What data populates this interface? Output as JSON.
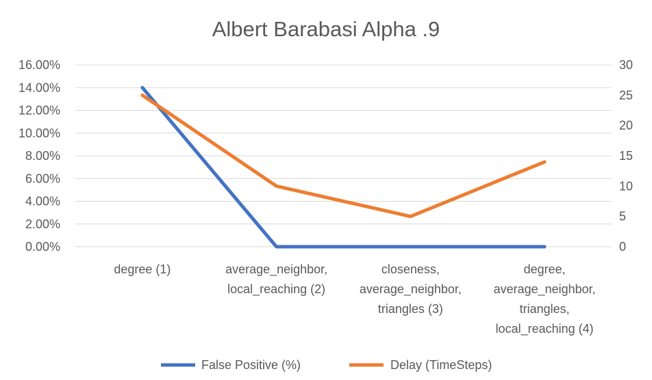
{
  "chart_data": {
    "type": "line",
    "title": "Albert Barabasi Alpha .9",
    "categories": [
      [
        "degree (1)"
      ],
      [
        "average_neighbor,",
        "local_reaching (2)"
      ],
      [
        "closeness,",
        "average_neighbor,",
        "triangles (3)"
      ],
      [
        "degree,",
        "average_neighbor,",
        "triangles,",
        "local_reaching (4)"
      ]
    ],
    "y_left": {
      "min": 0,
      "max": 0.16,
      "step": 0.02,
      "tick_labels": [
        "0.00%",
        "2.00%",
        "4.00%",
        "6.00%",
        "8.00%",
        "10.00%",
        "12.00%",
        "14.00%",
        "16.00%"
      ]
    },
    "y_right": {
      "min": 0,
      "max": 30,
      "step": 5,
      "tick_labels": [
        "0",
        "5",
        "10",
        "15",
        "20",
        "25",
        "30"
      ]
    },
    "grid": true,
    "legend_position": "bottom",
    "series": [
      {
        "name": "False Positive (%)",
        "axis": "left",
        "color": "#4472c4",
        "values": [
          0.14,
          0,
          0,
          0
        ]
      },
      {
        "name": "Delay (TimeSteps)",
        "axis": "right",
        "color": "#ed7d31",
        "values": [
          25,
          10,
          5,
          14
        ]
      }
    ]
  }
}
